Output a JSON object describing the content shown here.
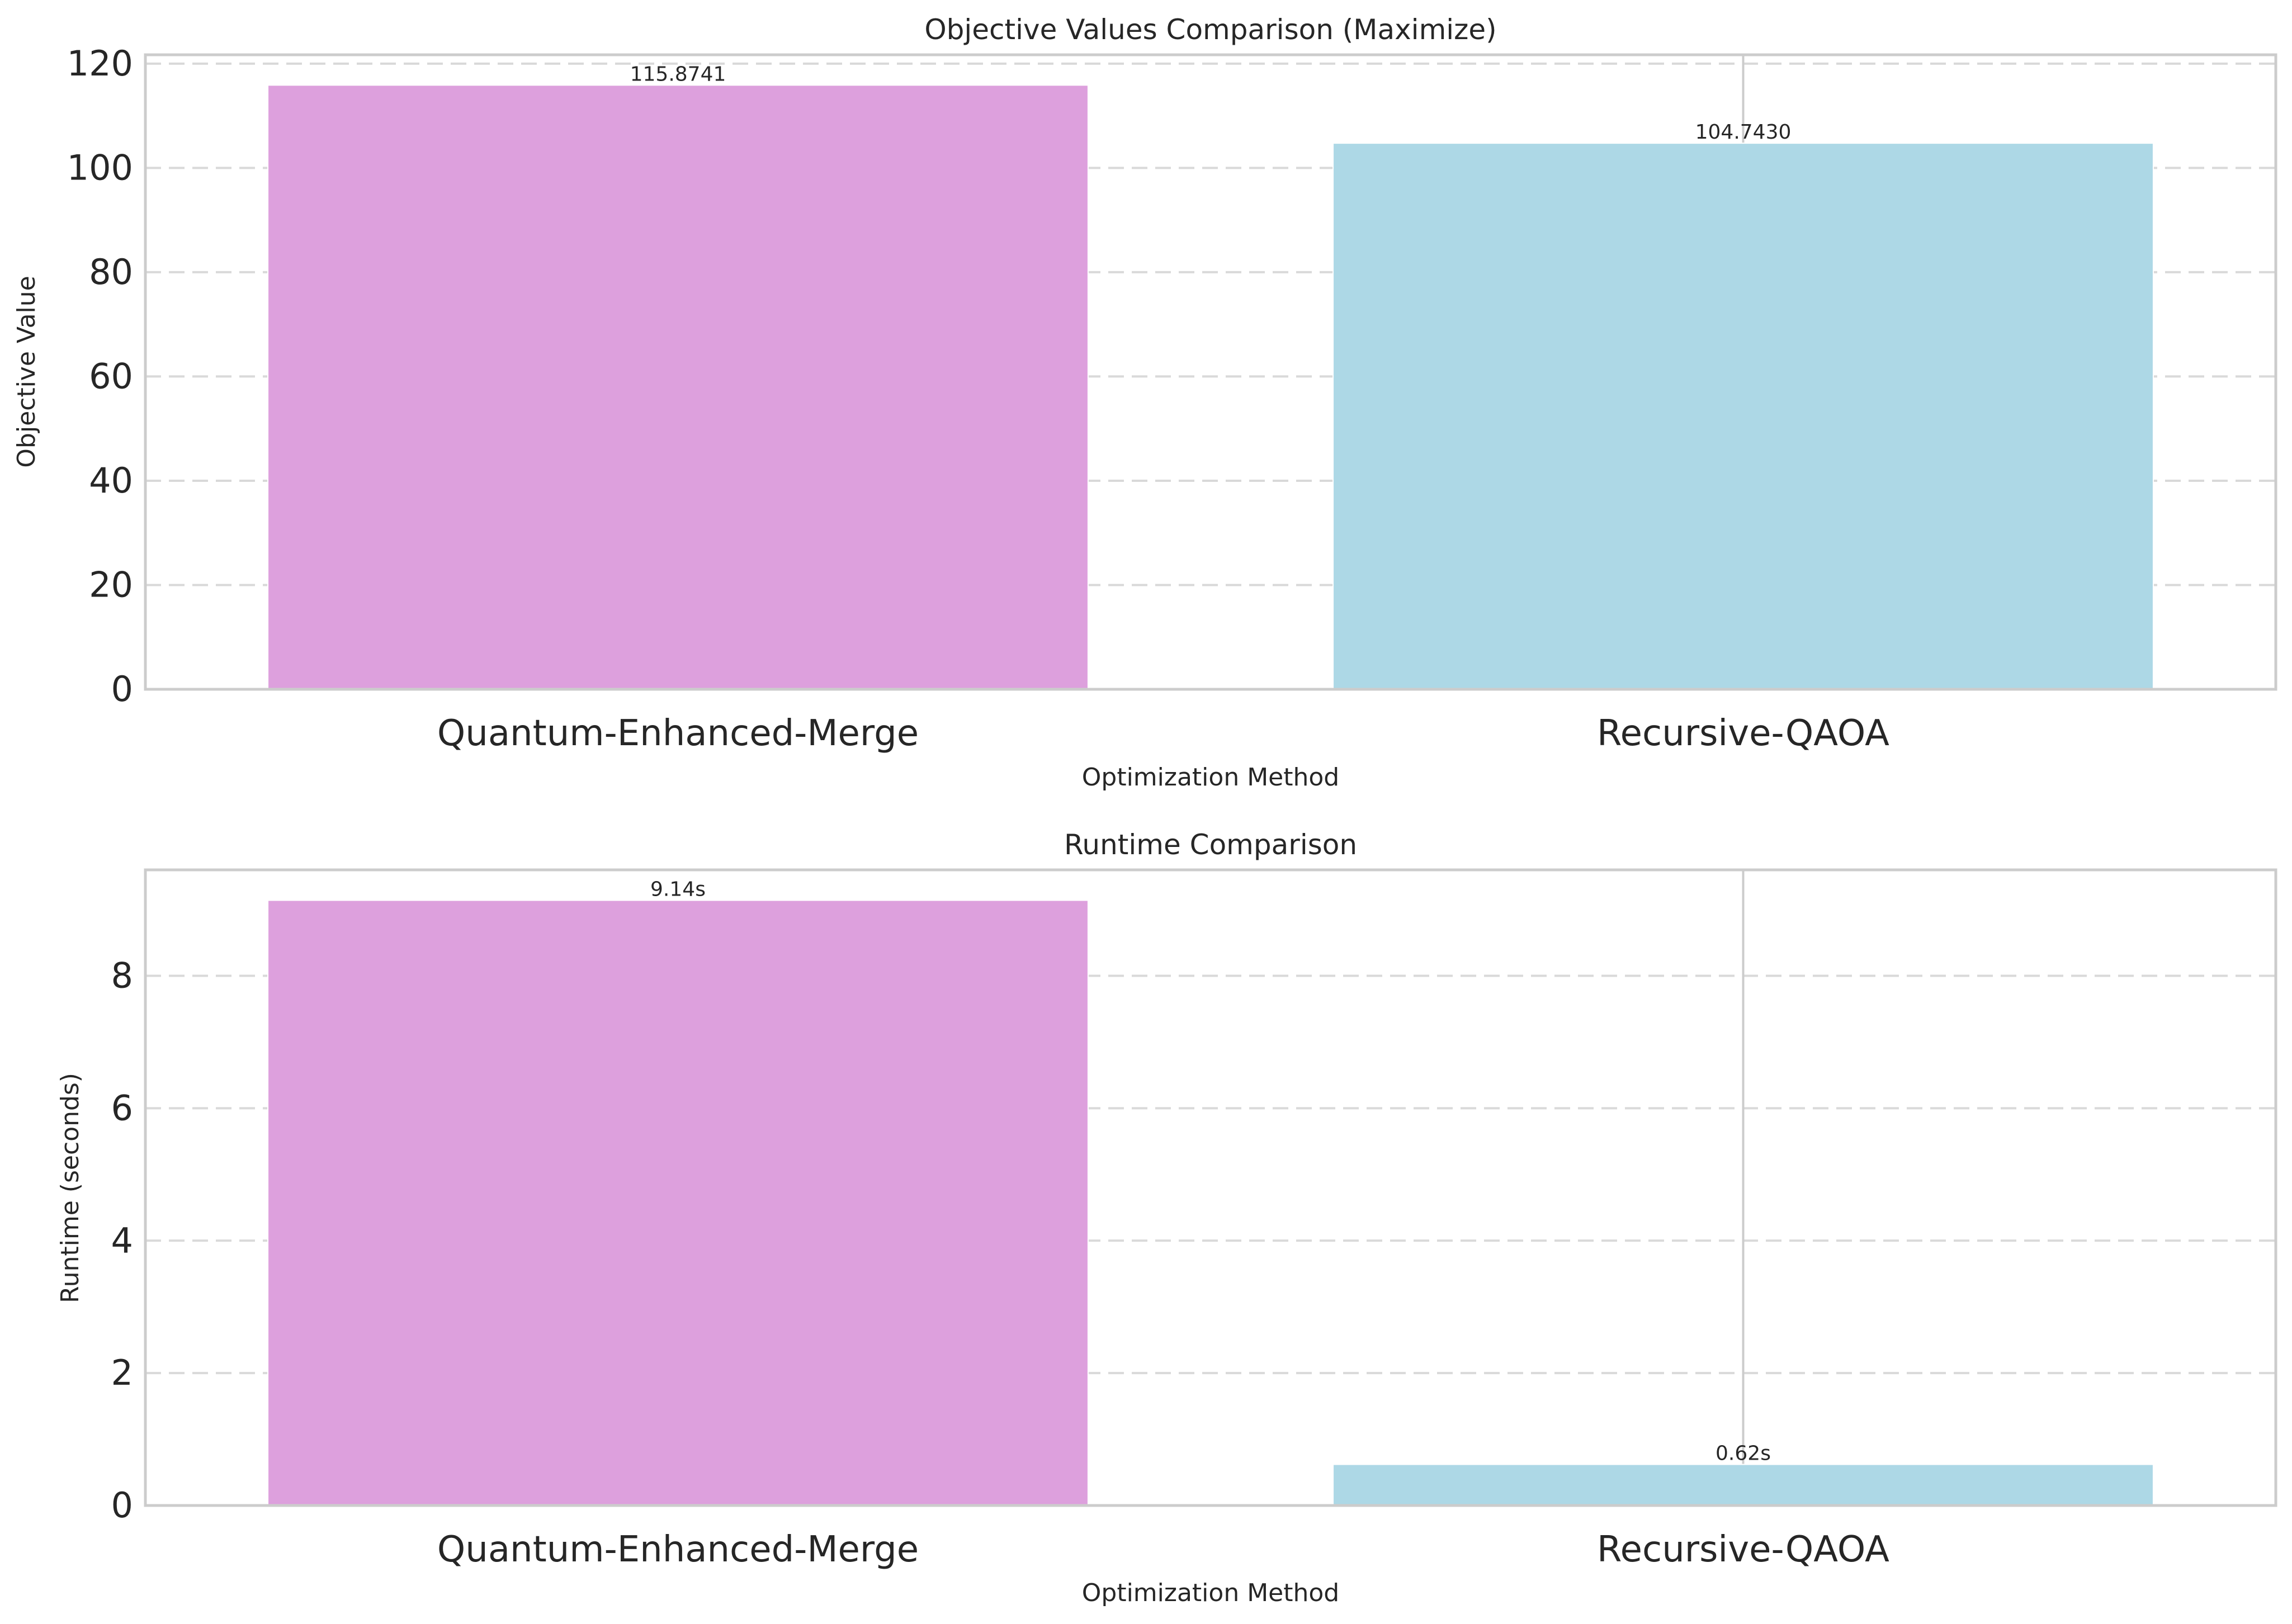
{
  "chart_data": [
    {
      "type": "bar",
      "title": "Objective Values Comparison (Maximize)",
      "xlabel": "Optimization Method",
      "ylabel": "Objective Value",
      "categories": [
        "Quantum-Enhanced-Merge",
        "Recursive-QAOA"
      ],
      "values": [
        115.8741,
        104.743
      ],
      "value_labels": [
        "115.8741",
        "104.7430"
      ],
      "yticks": [
        0,
        20,
        40,
        60,
        80,
        100,
        120
      ],
      "ylim": [
        0,
        121.7
      ],
      "grid": true,
      "colors": [
        "#dda0dd",
        "#add8e6"
      ]
    },
    {
      "type": "bar",
      "title": "Runtime Comparison",
      "xlabel": "Optimization Method",
      "ylabel": "Runtime (seconds)",
      "categories": [
        "Quantum-Enhanced-Merge",
        "Recursive-QAOA"
      ],
      "values": [
        9.14,
        0.62
      ],
      "value_labels": [
        "9.14s",
        "0.62s"
      ],
      "yticks": [
        0,
        2,
        4,
        6,
        8
      ],
      "ylim": [
        0,
        9.6
      ],
      "grid": true,
      "colors": [
        "#dda0dd",
        "#add8e6"
      ]
    }
  ]
}
